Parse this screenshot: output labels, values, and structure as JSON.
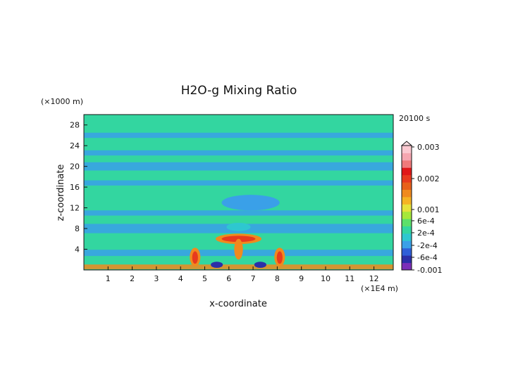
{
  "chart_data": {
    "type": "heatmap",
    "title": "H2O-g Mixing Ratio",
    "xlabel": "x-coordinate",
    "ylabel": "z-coordinate",
    "x_unit": "(×1E4 m)",
    "y_unit": "(×1000 m)",
    "time_label": "20100 s",
    "xlim": [
      0,
      12.8
    ],
    "ylim": [
      0,
      30
    ],
    "x_ticks": [
      1,
      2,
      3,
      4,
      5,
      6,
      7,
      8,
      9,
      10,
      11,
      12
    ],
    "y_ticks": [
      4,
      8,
      12,
      16,
      20,
      24,
      28
    ],
    "colorbar": {
      "labels": [
        "0.003",
        "0.002",
        "0.001",
        "6e-4",
        "2e-4",
        "-2e-4",
        "-6e-4",
        "-0.001"
      ],
      "colors": [
        "#7b2fb8",
        "#2b2fa8",
        "#2f5fd8",
        "#3aa0e8",
        "#2ec7d0",
        "#33d6a0",
        "#5ce06a",
        "#a6e83a",
        "#e6e23a",
        "#f5b323",
        "#f08a1e",
        "#e8601a",
        "#e83a1e",
        "#e01818",
        "#f07a7a",
        "#f6a6b0",
        "#fbc8d0"
      ]
    },
    "background_color": "#33d6a0",
    "features": [
      {
        "kind": "band",
        "z": 0.6,
        "dz": 0.9,
        "color": "#f08a1e"
      },
      {
        "kind": "band",
        "z": 3.3,
        "dz": 1.2,
        "color": "#3aa0e8"
      },
      {
        "kind": "band",
        "z": 8.0,
        "dz": 1.8,
        "color": "#3aa0e8"
      },
      {
        "kind": "band",
        "z": 11.0,
        "dz": 1.0,
        "color": "#3aa0e8"
      },
      {
        "kind": "band",
        "z": 16.8,
        "dz": 1.0,
        "color": "#3aa0e8"
      },
      {
        "kind": "band",
        "z": 20.0,
        "dz": 1.6,
        "color": "#3aa0e8"
      },
      {
        "kind": "band",
        "z": 22.6,
        "dz": 1.0,
        "color": "#3aa0e8"
      },
      {
        "kind": "band",
        "z": 26.0,
        "dz": 1.0,
        "color": "#3aa0e8"
      },
      {
        "kind": "blob",
        "x": 6.4,
        "z": 6.0,
        "rx": 0.95,
        "rz": 1.0,
        "color": "#f08a1e"
      },
      {
        "kind": "blob",
        "x": 6.4,
        "z": 6.0,
        "rx": 0.7,
        "rz": 0.6,
        "color": "#e83a1e"
      },
      {
        "kind": "blob",
        "x": 6.4,
        "z": 4.0,
        "rx": 0.18,
        "rz": 2.0,
        "color": "#f08a1e"
      },
      {
        "kind": "blob",
        "x": 4.6,
        "z": 2.5,
        "rx": 0.22,
        "rz": 1.8,
        "color": "#f08a1e"
      },
      {
        "kind": "blob",
        "x": 8.1,
        "z": 2.5,
        "rx": 0.22,
        "rz": 1.8,
        "color": "#f08a1e"
      },
      {
        "kind": "blob",
        "x": 4.6,
        "z": 2.4,
        "rx": 0.12,
        "rz": 1.2,
        "color": "#e83a1e"
      },
      {
        "kind": "blob",
        "x": 8.1,
        "z": 2.4,
        "rx": 0.12,
        "rz": 1.2,
        "color": "#e83a1e"
      },
      {
        "kind": "blob",
        "x": 5.5,
        "z": 1.0,
        "rx": 0.25,
        "rz": 0.6,
        "color": "#2b2fa8"
      },
      {
        "kind": "blob",
        "x": 7.3,
        "z": 1.0,
        "rx": 0.25,
        "rz": 0.6,
        "color": "#2b2fa8"
      },
      {
        "kind": "blob",
        "x": 6.9,
        "z": 13.0,
        "rx": 1.2,
        "rz": 1.5,
        "color": "#3aa0e8"
      },
      {
        "kind": "blob",
        "x": 6.4,
        "z": 8.3,
        "rx": 0.5,
        "rz": 0.8,
        "color": "#2ec7d0"
      }
    ]
  }
}
